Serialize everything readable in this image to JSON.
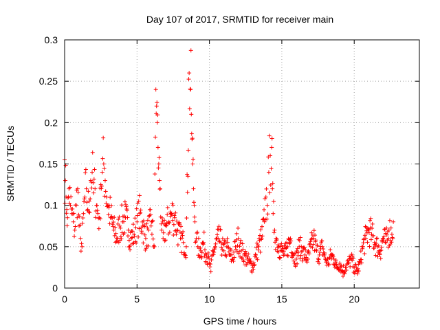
{
  "chart_data": {
    "type": "scatter",
    "title": "Day 107 of 2017, SRMTID for receiver main",
    "xlabel": "GPS time / hours",
    "ylabel": "SRMTID / TECUs",
    "xlim": [
      0,
      24.5
    ],
    "ylim": [
      0,
      0.3
    ],
    "xticks": [
      0,
      5,
      10,
      15,
      20
    ],
    "xtick_labels": [
      "0",
      "5",
      "10",
      "15",
      "20"
    ],
    "yticks": [
      0,
      0.05,
      0.1,
      0.15,
      0.2,
      0.25,
      0.3
    ],
    "ytick_labels": [
      "0",
      "0.05",
      "0.1",
      "0.15",
      "0.2",
      "0.25",
      "0.3"
    ],
    "grid": true,
    "marker": "+",
    "color": "#ff0000",
    "series": [
      {
        "name": "SRMTID",
        "x": [
          0.0,
          0.05,
          0.1,
          0.15,
          0.2,
          0.3,
          0.4,
          0.5,
          0.6,
          0.7,
          0.8,
          0.9,
          1.0,
          1.1,
          1.2,
          1.3,
          1.4,
          1.5,
          1.6,
          1.7,
          1.8,
          1.9,
          2.0,
          2.1,
          2.2,
          2.3,
          2.4,
          2.5,
          2.6,
          2.7,
          2.8,
          2.9,
          3.0,
          3.2,
          3.4,
          3.6,
          3.8,
          4.0,
          4.2,
          4.4,
          4.6,
          4.8,
          5.0,
          5.2,
          5.4,
          5.6,
          5.8,
          6.0,
          6.2,
          6.3,
          6.35,
          6.4,
          6.45,
          6.5,
          6.55,
          6.6,
          6.7,
          6.8,
          7.0,
          7.2,
          7.4,
          7.6,
          7.8,
          8.0,
          8.2,
          8.4,
          8.6,
          8.7,
          8.75,
          8.8,
          8.85,
          8.9,
          8.95,
          9.0,
          9.1,
          9.2,
          9.4,
          9.6,
          9.8,
          10.0,
          10.1,
          10.2,
          10.4,
          10.6,
          10.8,
          11.0,
          11.2,
          11.4,
          11.6,
          11.8,
          12.0,
          12.2,
          12.4,
          12.6,
          12.8,
          13.0,
          13.2,
          13.4,
          13.6,
          13.8,
          13.9,
          14.0,
          14.1,
          14.2,
          14.3,
          14.35,
          14.4,
          14.5,
          14.6,
          14.8,
          15.0,
          15.2,
          15.4,
          15.6,
          15.8,
          16.0,
          16.2,
          16.4,
          16.6,
          16.8,
          17.0,
          17.2,
          17.4,
          17.6,
          17.8,
          18.0,
          18.2,
          18.4,
          18.6,
          18.8,
          19.0,
          19.2,
          19.4,
          19.6,
          19.8,
          20.0,
          20.2,
          20.4,
          20.6,
          20.8,
          21.0,
          21.2,
          21.4,
          21.6,
          21.8,
          22.0,
          22.2,
          22.4,
          22.6,
          22.7
        ],
        "y": [
          0.155,
          0.13,
          0.11,
          0.095,
          0.085,
          0.12,
          0.1,
          0.09,
          0.08,
          0.07,
          0.1,
          0.12,
          0.075,
          0.06,
          0.05,
          0.09,
          0.11,
          0.12,
          0.095,
          0.105,
          0.13,
          0.14,
          0.115,
          0.12,
          0.1,
          0.09,
          0.085,
          0.125,
          0.14,
          0.15,
          0.13,
          0.11,
          0.1,
          0.085,
          0.07,
          0.06,
          0.075,
          0.08,
          0.085,
          0.07,
          0.06,
          0.065,
          0.08,
          0.09,
          0.075,
          0.06,
          0.07,
          0.08,
          0.05,
          0.24,
          0.22,
          0.2,
          0.17,
          0.15,
          0.13,
          0.12,
          0.07,
          0.06,
          0.075,
          0.08,
          0.09,
          0.085,
          0.07,
          0.06,
          0.055,
          0.05,
          0.26,
          0.24,
          0.21,
          0.18,
          0.15,
          0.12,
          0.1,
          0.08,
          0.06,
          0.05,
          0.045,
          0.055,
          0.04,
          0.03,
          0.02,
          0.04,
          0.05,
          0.06,
          0.055,
          0.045,
          0.05,
          0.04,
          0.035,
          0.05,
          0.06,
          0.045,
          0.04,
          0.035,
          0.03,
          0.025,
          0.04,
          0.05,
          0.06,
          0.08,
          0.11,
          0.1,
          0.14,
          0.16,
          0.17,
          0.12,
          0.09,
          0.07,
          0.06,
          0.05,
          0.045,
          0.04,
          0.05,
          0.06,
          0.04,
          0.035,
          0.05,
          0.045,
          0.04,
          0.035,
          0.05,
          0.06,
          0.045,
          0.04,
          0.05,
          0.035,
          0.03,
          0.04,
          0.035,
          0.025,
          0.03,
          0.02,
          0.025,
          0.03,
          0.035,
          0.025,
          0.02,
          0.03,
          0.05,
          0.06,
          0.07,
          0.065,
          0.055,
          0.05,
          0.045,
          0.06,
          0.055,
          0.07,
          0.065,
          0.08
        ]
      }
    ]
  }
}
